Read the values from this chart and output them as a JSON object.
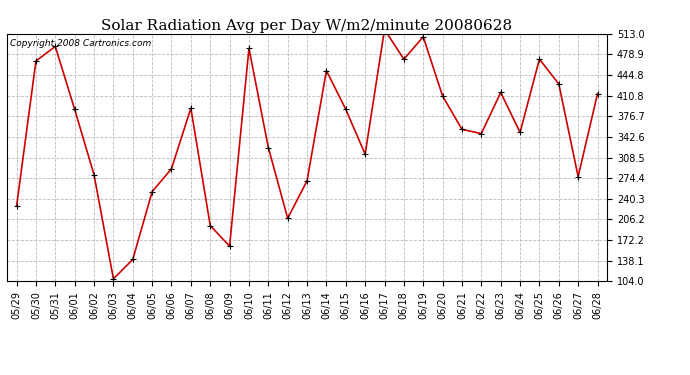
{
  "title": "Solar Radiation Avg per Day W/m2/minute 20080628",
  "copyright": "Copyright 2008 Cartronics.com",
  "dates": [
    "05/29",
    "05/30",
    "05/31",
    "06/01",
    "06/02",
    "06/03",
    "06/04",
    "06/05",
    "06/06",
    "06/07",
    "06/08",
    "06/09",
    "06/10",
    "06/11",
    "06/12",
    "06/13",
    "06/14",
    "06/15",
    "06/16",
    "06/17",
    "06/18",
    "06/19",
    "06/20",
    "06/21",
    "06/22",
    "06/23",
    "06/24",
    "06/25",
    "06/26",
    "06/27",
    "06/28"
  ],
  "values": [
    228,
    468,
    492,
    388,
    280,
    108,
    140,
    252,
    290,
    390,
    196,
    162,
    489,
    325,
    208,
    270,
    452,
    388,
    314,
    520,
    471,
    508,
    410,
    355,
    348,
    416,
    350,
    471,
    430,
    277,
    414
  ],
  "line_color": "#cc0000",
  "marker": "+",
  "marker_color": "#000000",
  "bg_color": "#ffffff",
  "grid_color": "#bbbbbb",
  "ymin": 104.0,
  "ymax": 513.0,
  "yticks": [
    104.0,
    138.1,
    172.2,
    206.2,
    240.3,
    274.4,
    308.5,
    342.6,
    376.7,
    410.8,
    444.8,
    478.9,
    513.0
  ],
  "title_fontsize": 11,
  "tick_fontsize": 7,
  "copyright_fontsize": 6.5
}
